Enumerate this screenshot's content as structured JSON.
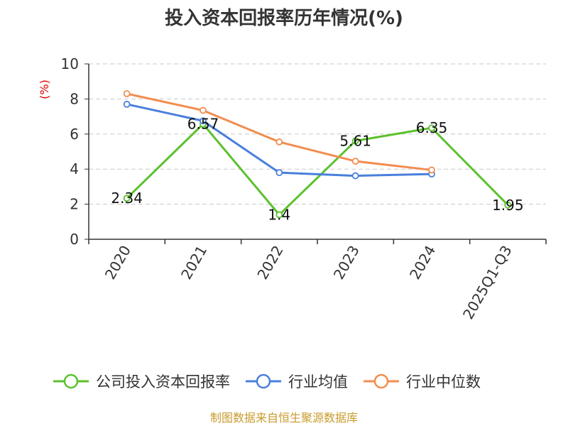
{
  "chart_data": {
    "type": "line",
    "title": "投入资本回报率历年情况(%)",
    "ylabel": "(%)",
    "xlabel": "",
    "categories": [
      "2020",
      "2021",
      "2022",
      "2023",
      "2024",
      "2025Q1-Q3"
    ],
    "ylim": [
      0,
      10
    ],
    "yticks": [
      0,
      2,
      4,
      6,
      8,
      10
    ],
    "grid": true,
    "legend_position": "bottom",
    "series": [
      {
        "name": "公司投入资本回报率",
        "color": "#5cc12e",
        "values": [
          2.34,
          6.57,
          1.4,
          5.61,
          6.35,
          1.95
        ],
        "labels": [
          "2.34",
          "6.57",
          "1.4",
          "5.61",
          "6.35",
          "1.95"
        ]
      },
      {
        "name": "行业均值",
        "color": "#4a7fdc",
        "values": [
          7.7,
          6.75,
          3.8,
          3.62,
          3.72,
          null
        ]
      },
      {
        "name": "行业中位数",
        "color": "#f28d50",
        "values": [
          8.3,
          7.35,
          5.55,
          4.45,
          3.95,
          null
        ]
      }
    ]
  },
  "source_text": "制图数据来自恒生聚源数据库"
}
